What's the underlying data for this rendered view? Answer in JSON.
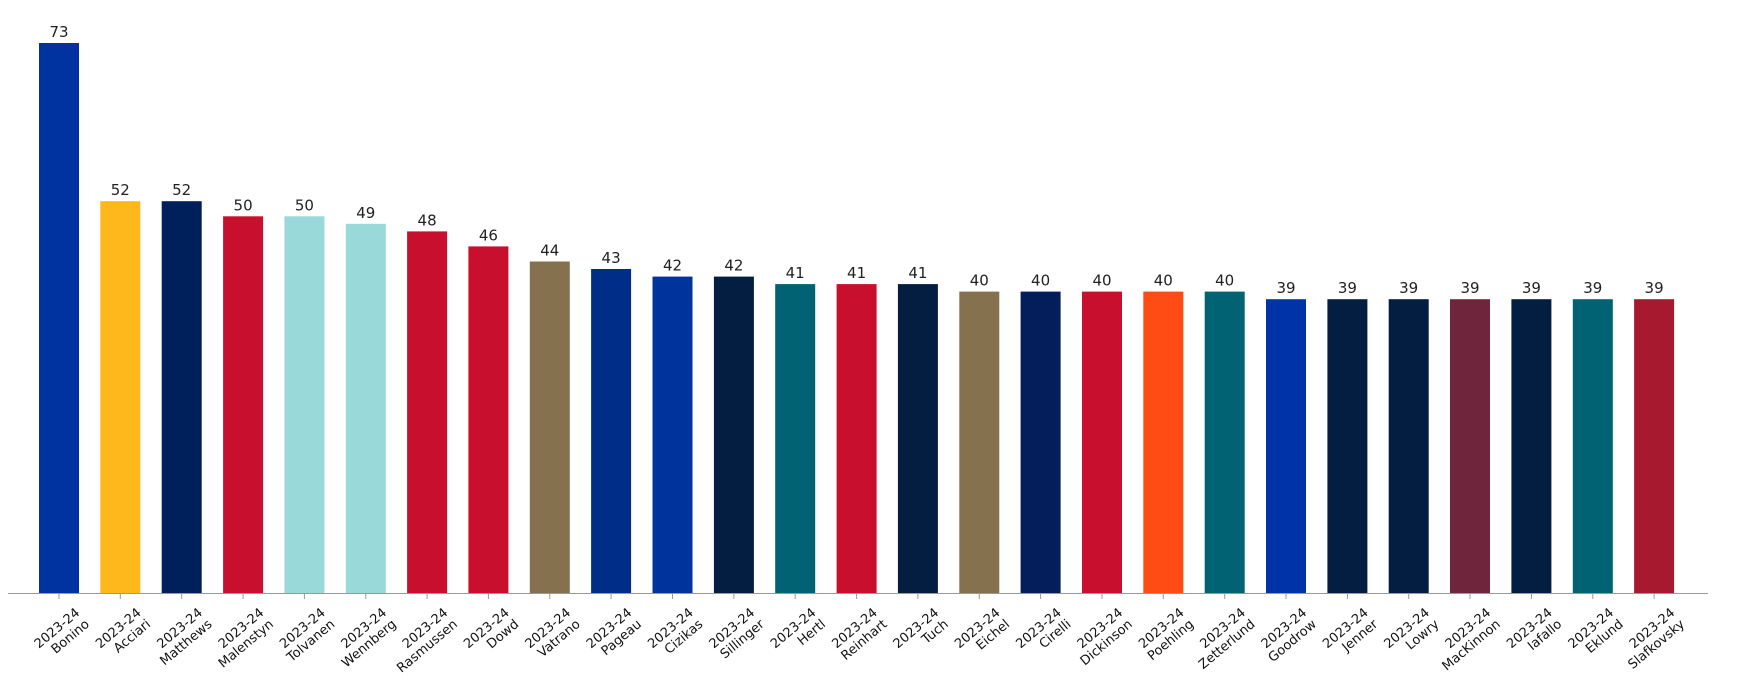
{
  "chart_data": {
    "type": "bar",
    "title": "",
    "xlabel": "",
    "ylabel": "",
    "ylim": [
      0,
      75
    ],
    "grid": false,
    "categories": [
      [
        "2023-24",
        "Bonino"
      ],
      [
        "2023-24",
        "Acciari"
      ],
      [
        "2023-24",
        "Matthews"
      ],
      [
        "2023-24",
        "Malenstyn"
      ],
      [
        "2023-24",
        "Tolvanen"
      ],
      [
        "2023-24",
        "Wennberg"
      ],
      [
        "2023-24",
        "Rasmussen"
      ],
      [
        "2023-24",
        "Dowd"
      ],
      [
        "2023-24",
        "Vatrano"
      ],
      [
        "2023-24",
        "Pageau"
      ],
      [
        "2023-24",
        "Cizikas"
      ],
      [
        "2023-24",
        "Sillinger"
      ],
      [
        "2023-24",
        "Hertl"
      ],
      [
        "2023-24",
        "Reinhart"
      ],
      [
        "2023-24",
        "Tuch"
      ],
      [
        "2023-24",
        "Eichel"
      ],
      [
        "2023-24",
        "Cirelli"
      ],
      [
        "2023-24",
        "Dickinson"
      ],
      [
        "2023-24",
        "Poehling"
      ],
      [
        "2023-24",
        "Zetterlund"
      ],
      [
        "2023-24",
        "Goodrow"
      ],
      [
        "2023-24",
        "Jenner"
      ],
      [
        "2023-24",
        "Lowry"
      ],
      [
        "2023-24",
        "MacKinnon"
      ],
      [
        "2023-24",
        "Iafallo"
      ],
      [
        "2023-24",
        "Eklund"
      ],
      [
        "2023-24",
        "Slafkovsky"
      ]
    ],
    "values": [
      73,
      52,
      52,
      50,
      50,
      49,
      48,
      46,
      44,
      43,
      42,
      42,
      41,
      41,
      41,
      40,
      40,
      40,
      40,
      40,
      39,
      39,
      39,
      39,
      39,
      39,
      39
    ],
    "colors": [
      "#0033A0",
      "#FFB81C",
      "#00205B",
      "#C8102E",
      "#99D9D9",
      "#99D9D9",
      "#C8102E",
      "#C8102E",
      "#85714D",
      "#002D87",
      "#00339B",
      "#041E42",
      "#006272",
      "#C8102E",
      "#041E42",
      "#85714D",
      "#041E5B",
      "#C8102E",
      "#FF4C14",
      "#006272",
      "#0033A8",
      "#041E42",
      "#041E42",
      "#6F263D",
      "#041E42",
      "#006272",
      "#A6192E"
    ]
  }
}
